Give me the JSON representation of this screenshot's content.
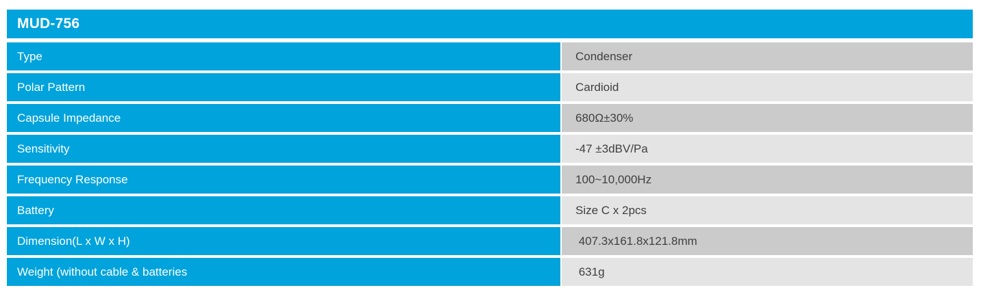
{
  "table": {
    "title": "MUD-756",
    "rows": [
      {
        "label": "Type",
        "value": "Condenser"
      },
      {
        "label": "Polar Pattern",
        "value": "Cardioid"
      },
      {
        "label": "Capsule Impedance",
        "value": "680Ω±30%"
      },
      {
        "label": "Sensitivity",
        "value": "-47 ±3dBV/Pa"
      },
      {
        "label": "Frequency Response",
        "value": "100~10,000Hz"
      },
      {
        "label": "Battery",
        "value": "Size C x 2pcs"
      },
      {
        "label": "Dimension(L x W x H)",
        "value": " 407.3x161.8x121.8mm"
      },
      {
        "label": "Weight (without cable & batteries",
        "value": " 631g"
      }
    ]
  },
  "colors": {
    "accent_blue": "#00a3dc",
    "row_dark": "#cbcbcb",
    "row_light": "#e4e4e4",
    "label_text": "#fdfeff",
    "value_text": "#3f3f3f",
    "page_bg": "#ffffff"
  }
}
